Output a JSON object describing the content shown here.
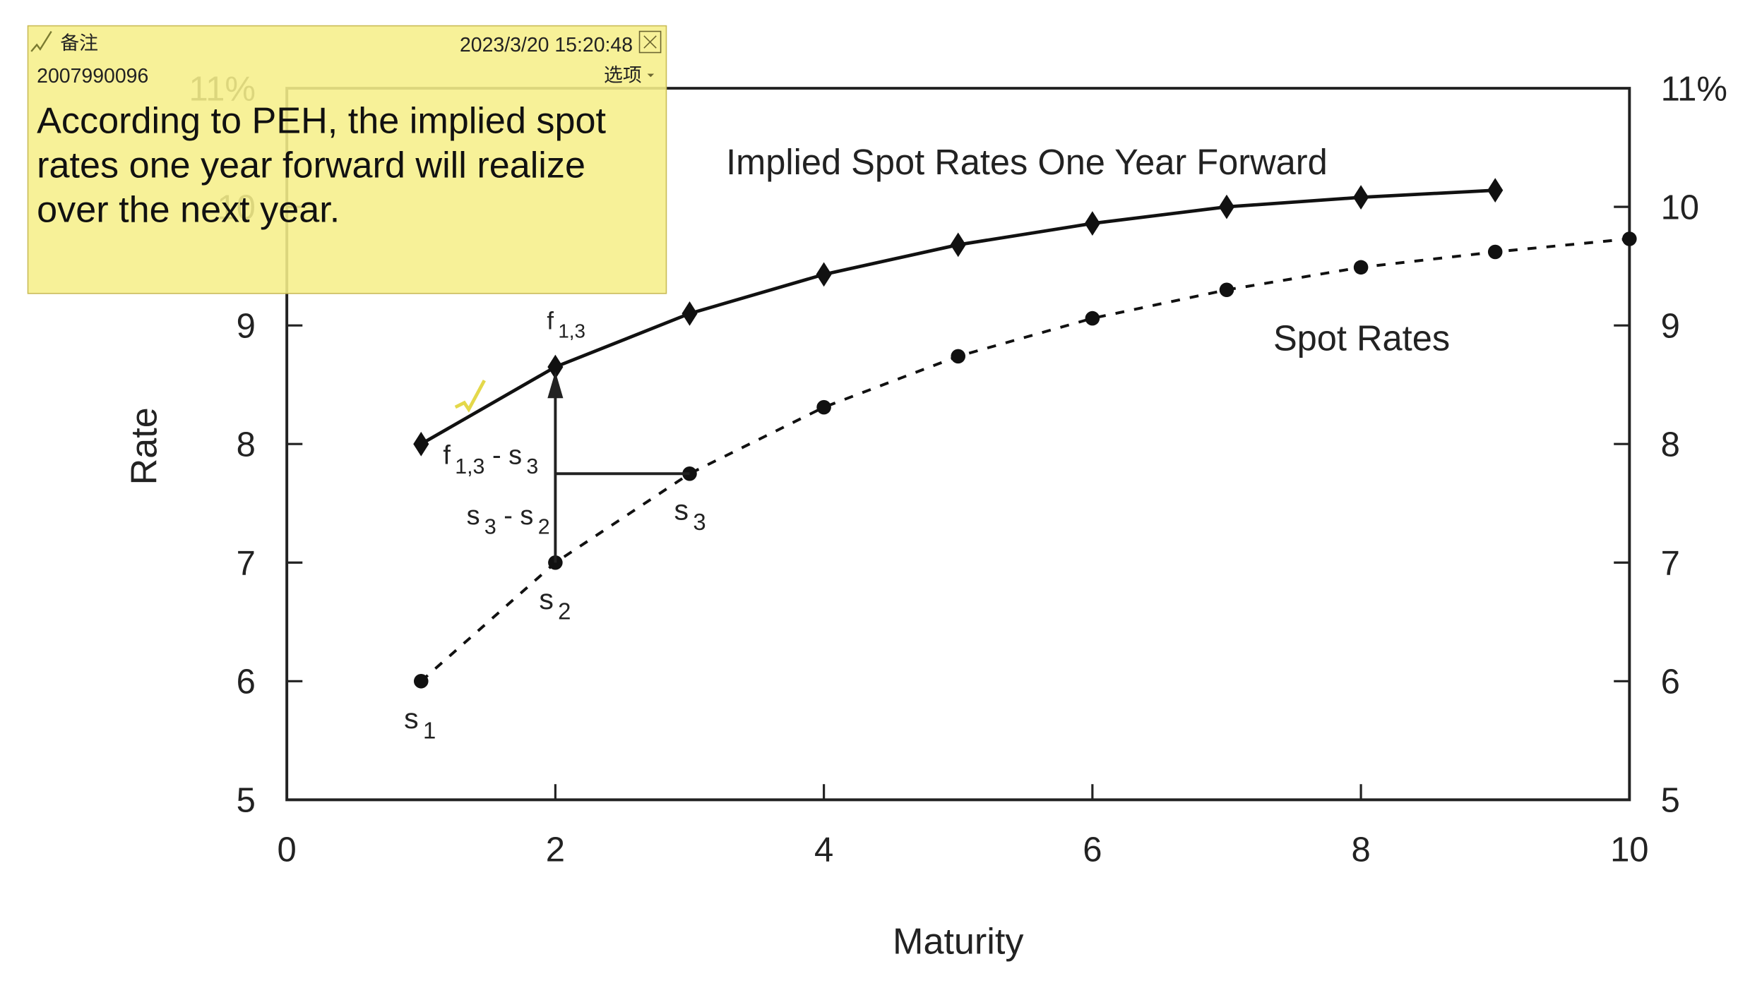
{
  "chart_data": {
    "type": "line",
    "x_label": "Maturity",
    "y_label": "Rate",
    "xlim": [
      0,
      10
    ],
    "xticks": [
      0,
      2,
      4,
      6,
      8,
      10
    ],
    "ylim": [
      5,
      11
    ],
    "yticks": [
      5,
      6,
      7,
      8,
      9,
      10,
      {
        "value": 11,
        "label": "11%"
      }
    ],
    "series": [
      {
        "name": "Implied Spot Rates One Year Forward",
        "color": "#111111",
        "marker": "diamond",
        "dash": false,
        "x": [
          1,
          2,
          3,
          4,
          5,
          6,
          7,
          8,
          9
        ],
        "values": [
          8.0,
          8.65,
          9.1,
          9.43,
          9.68,
          9.86,
          10.0,
          10.08,
          10.14
        ]
      },
      {
        "name": "Spot Rates",
        "color": "#111111",
        "marker": "circle",
        "dash": true,
        "x": [
          1,
          2,
          3,
          4,
          5,
          6,
          7,
          8,
          9,
          10
        ],
        "values": [
          6.0,
          7.0,
          7.75,
          8.31,
          8.74,
          9.06,
          9.3,
          9.49,
          9.62,
          9.73
        ]
      }
    ],
    "annotations": [
      {
        "parts": [
          {
            "t": "f"
          },
          {
            "sub": "1,3"
          }
        ]
      },
      {
        "parts": [
          {
            "t": "s"
          },
          {
            "sub": "1"
          }
        ]
      },
      {
        "parts": [
          {
            "t": "s"
          },
          {
            "sub": "2"
          }
        ]
      },
      {
        "parts": [
          {
            "t": "s"
          },
          {
            "sub": "3"
          }
        ]
      },
      {
        "parts": [
          {
            "t": "f"
          },
          {
            "sub": "1,3"
          },
          {
            "t": " - s"
          },
          {
            "sub": "3"
          }
        ]
      },
      {
        "parts": [
          {
            "t": "s"
          },
          {
            "sub": "3"
          },
          {
            "t": " - s"
          },
          {
            "sub": "2"
          }
        ]
      }
    ]
  },
  "note": {
    "title": "备注",
    "date": "2023/3/20 15:20:48",
    "author": "2007990096",
    "options": "选项",
    "body": "According to PEH, the implied spot rates one year forward will realize over the next year."
  }
}
